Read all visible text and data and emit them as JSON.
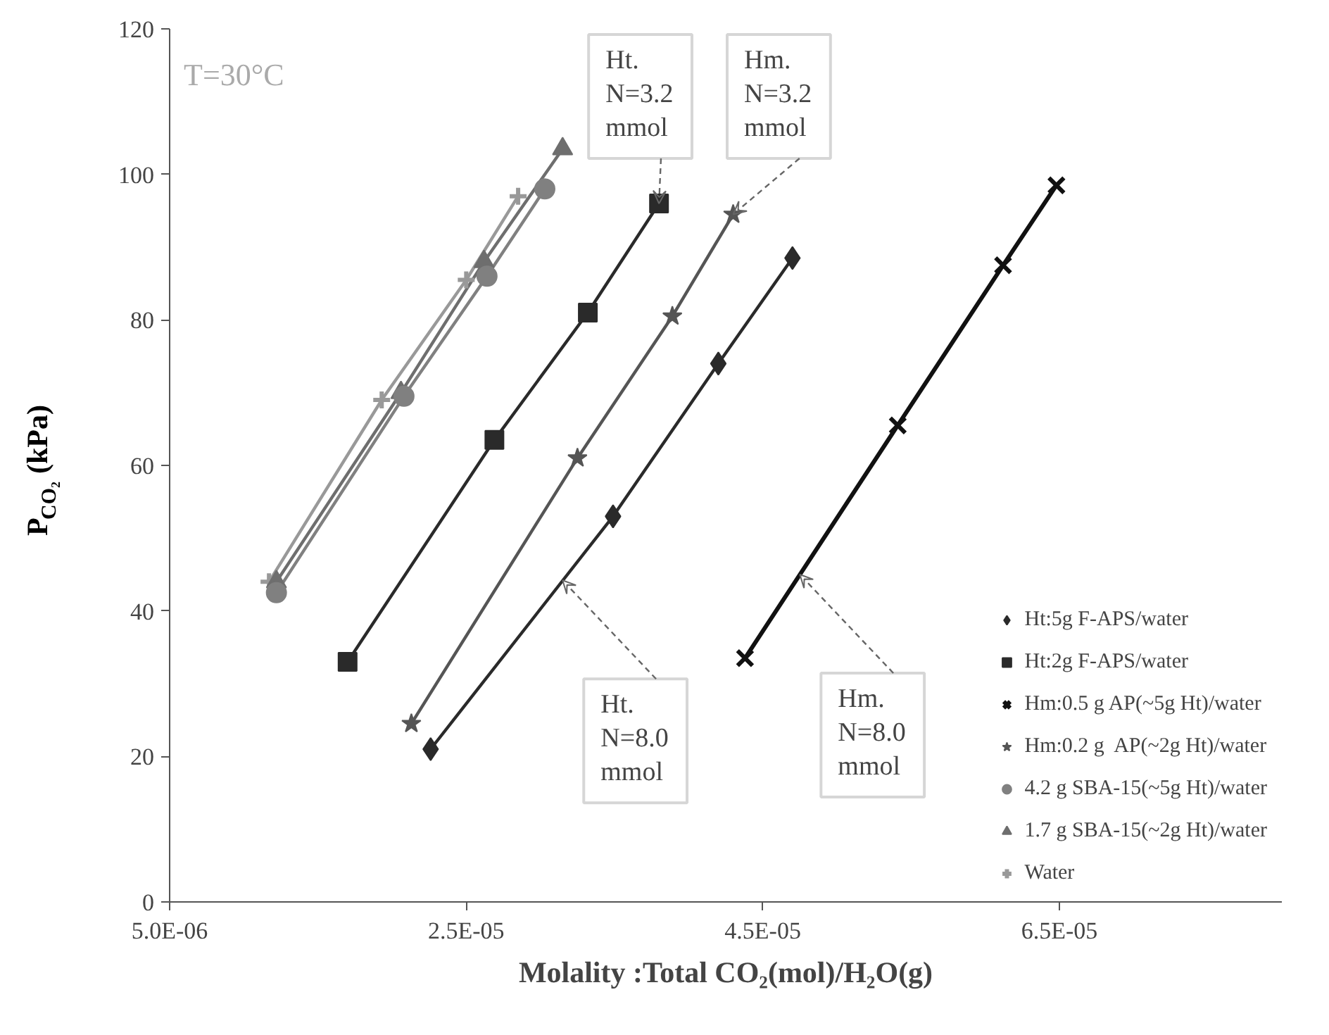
{
  "chart_data": {
    "type": "line",
    "xlabel": "Molality :Total CO₂(mol)/H₂O(g)",
    "ylabel": "P$_{CO₂}$ (kPa)",
    "xlim": [
      5e-06,
      8e-05
    ],
    "xticks": [
      {
        "value": 5e-06,
        "label": "5.0E-06"
      },
      {
        "value": 2.5e-05,
        "label": "2.5E-05"
      },
      {
        "value": 4.5e-05,
        "label": "4.5E-05"
      },
      {
        "value": 6.5e-05,
        "label": "6.5E-05"
      }
    ],
    "ylim": [
      0,
      120
    ],
    "yticks": [
      0,
      20,
      40,
      60,
      80,
      100,
      120
    ],
    "grid": false,
    "legend": "bottom right",
    "line_style": "solid",
    "series": [
      {
        "name": "Ht:5g F-APS/water",
        "color": "#2a2a2a",
        "marker": "diamond",
        "x": [
          2.26e-05,
          3.49e-05,
          4.2e-05,
          4.7e-05
        ],
        "values": [
          21,
          53,
          74,
          88.5
        ]
      },
      {
        "name": "Ht:2g F-APS/water",
        "color": "#2a2a2a",
        "marker": "square",
        "x": [
          1.7e-05,
          2.69e-05,
          3.32e-05,
          3.8e-05
        ],
        "values": [
          33,
          63.5,
          81,
          96
        ]
      },
      {
        "name": "Hm:0.5 g AP(~5g Ht)/water",
        "color": "#111111",
        "marker": "cross",
        "x": [
          4.38e-05,
          5.41e-05,
          6.12e-05,
          6.48e-05
        ],
        "values": [
          33.5,
          65.5,
          87.5,
          98.5
        ]
      },
      {
        "name": "Hm:0.2 g  AP(~2g Ht)/water",
        "color": "#555555",
        "marker": "star",
        "x": [
          2.13e-05,
          3.25e-05,
          3.89e-05,
          4.3e-05
        ],
        "values": [
          24.5,
          61,
          80.5,
          94.5
        ]
      },
      {
        "name": "4.2 g SBA-15(~5g Ht)/water",
        "color": "#808080",
        "marker": "circle",
        "x": [
          1.22e-05,
          2.08e-05,
          2.64e-05,
          3.03e-05
        ],
        "values": [
          42.5,
          69.5,
          86,
          98
        ]
      },
      {
        "name": "1.7 g SBA-15(~2g Ht)/water",
        "color": "#6e6e6e",
        "marker": "triangle",
        "x": [
          1.22e-05,
          2.06e-05,
          2.62e-05,
          3.15e-05
        ],
        "values": [
          44,
          70,
          88,
          103.5
        ]
      },
      {
        "name": "Water",
        "color": "#999999",
        "marker": "plus",
        "x": [
          1.17e-05,
          1.93e-05,
          2.5e-05,
          2.85e-05
        ],
        "values": [
          44,
          69,
          85.5,
          97
        ]
      }
    ],
    "annotations": [
      "T=30°C",
      {
        "text": "Ht. N=3.2 mmol",
        "x": 3.8e-05,
        "y": 96
      },
      {
        "text": "Hm. N=3.2 mmol",
        "x": 4.3e-05,
        "y": 94.5
      },
      {
        "text": "Ht. N=8.0 mmol",
        "x": 3.15e-05,
        "y": 44.2
      },
      {
        "text": "Hm. N=8.0 mmol",
        "x": 4.75e-05,
        "y": 45
      }
    ]
  }
}
